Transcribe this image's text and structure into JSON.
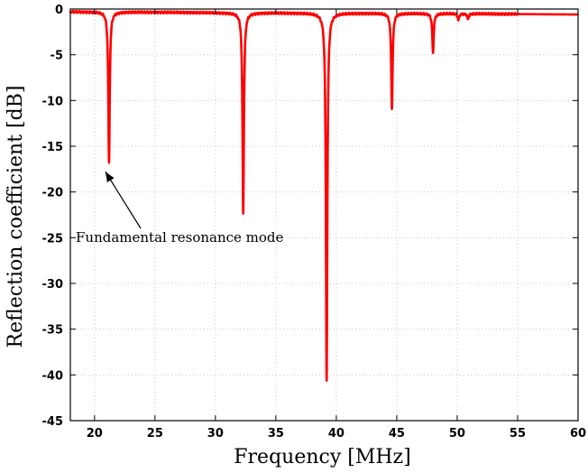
{
  "chart_data": {
    "type": "line",
    "xlabel": "Frequency [MHz]",
    "ylabel": "Reflection coefficient [dB]",
    "xlim": [
      18,
      60
    ],
    "ylim": [
      -45,
      0
    ],
    "xticks": [
      20,
      25,
      30,
      35,
      40,
      45,
      50,
      55,
      60
    ],
    "yticks": [
      0,
      -5,
      -10,
      -15,
      -20,
      -25,
      -30,
      -35,
      -40,
      -45
    ],
    "grid": true,
    "series": [
      {
        "color": "#ff0000",
        "baseline": [
          [
            18,
            -0.3
          ],
          [
            25,
            -0.35
          ],
          [
            30,
            -0.4
          ],
          [
            40,
            -0.45
          ],
          [
            50,
            -0.5
          ],
          [
            55,
            -0.55
          ],
          [
            60,
            -0.6
          ]
        ],
        "resonances": [
          {
            "f": 21.2,
            "depth": -16.8
          },
          {
            "f": 32.3,
            "depth": -22.3
          },
          {
            "f": 39.2,
            "depth": -40.5
          },
          {
            "f": 44.6,
            "depth": -10.8
          },
          {
            "f": 48.0,
            "depth": -4.8
          },
          {
            "f": 50.1,
            "depth": -1.2
          },
          {
            "f": 50.9,
            "depth": -1.1
          }
        ]
      }
    ],
    "annotations": [
      {
        "text": "Fundamental resonance mode",
        "x": 21.2,
        "y": -16.8
      }
    ]
  }
}
